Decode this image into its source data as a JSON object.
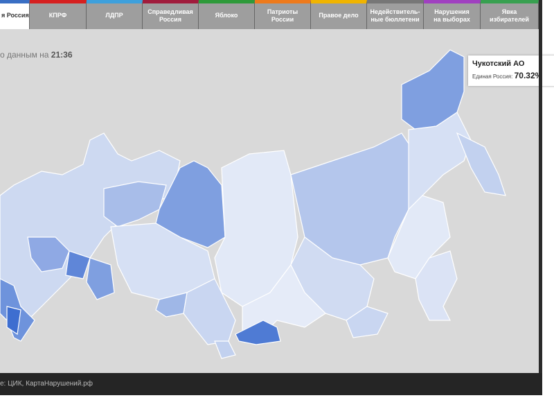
{
  "tabs": [
    {
      "lines": [
        "я Россия"
      ],
      "color": "#3a6fc4",
      "active": true
    },
    {
      "lines": [
        "КПРФ"
      ],
      "color": "#d62020",
      "active": false
    },
    {
      "lines": [
        "ЛДПР"
      ],
      "color": "#3ea0dc",
      "active": false
    },
    {
      "lines": [
        "Справедливая",
        "Россия"
      ],
      "color": "#a01c3c",
      "active": false
    },
    {
      "lines": [
        "Яблоко"
      ],
      "color": "#2e9a3a",
      "active": false
    },
    {
      "lines": [
        "Патриоты",
        "России"
      ],
      "color": "#ee7a1c",
      "active": false
    },
    {
      "lines": [
        "Правое дело"
      ],
      "color": "#f0b400",
      "active": false
    },
    {
      "lines": [
        "Недействитель-",
        "ные бюллетени"
      ],
      "color": "#777777",
      "active": false
    },
    {
      "lines": [
        "Нарушения",
        "на выборах"
      ],
      "color": "#a040c0",
      "active": false
    },
    {
      "lines": [
        "Явка",
        "избирателей"
      ],
      "color": "#38a050",
      "active": false
    }
  ],
  "status": {
    "prefix": "о данным на",
    "time": "21:36"
  },
  "tooltip": {
    "region": "Чукотский АО",
    "party": "Единая Россия:",
    "value": "70.32%"
  },
  "footer": {
    "source": "е: ЦИК, КартаНарушений.рф"
  }
}
